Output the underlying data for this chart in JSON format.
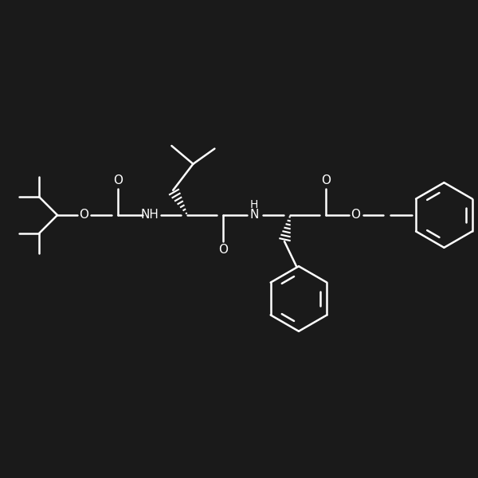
{
  "bg": "#1a1a1a",
  "fg": "#ffffff",
  "lw": 1.8,
  "fs": 11,
  "dpi": 100,
  "figsize": [
    6.0,
    6.0
  ],
  "xlim": [
    0,
    10
  ],
  "ylim": [
    0,
    10
  ]
}
